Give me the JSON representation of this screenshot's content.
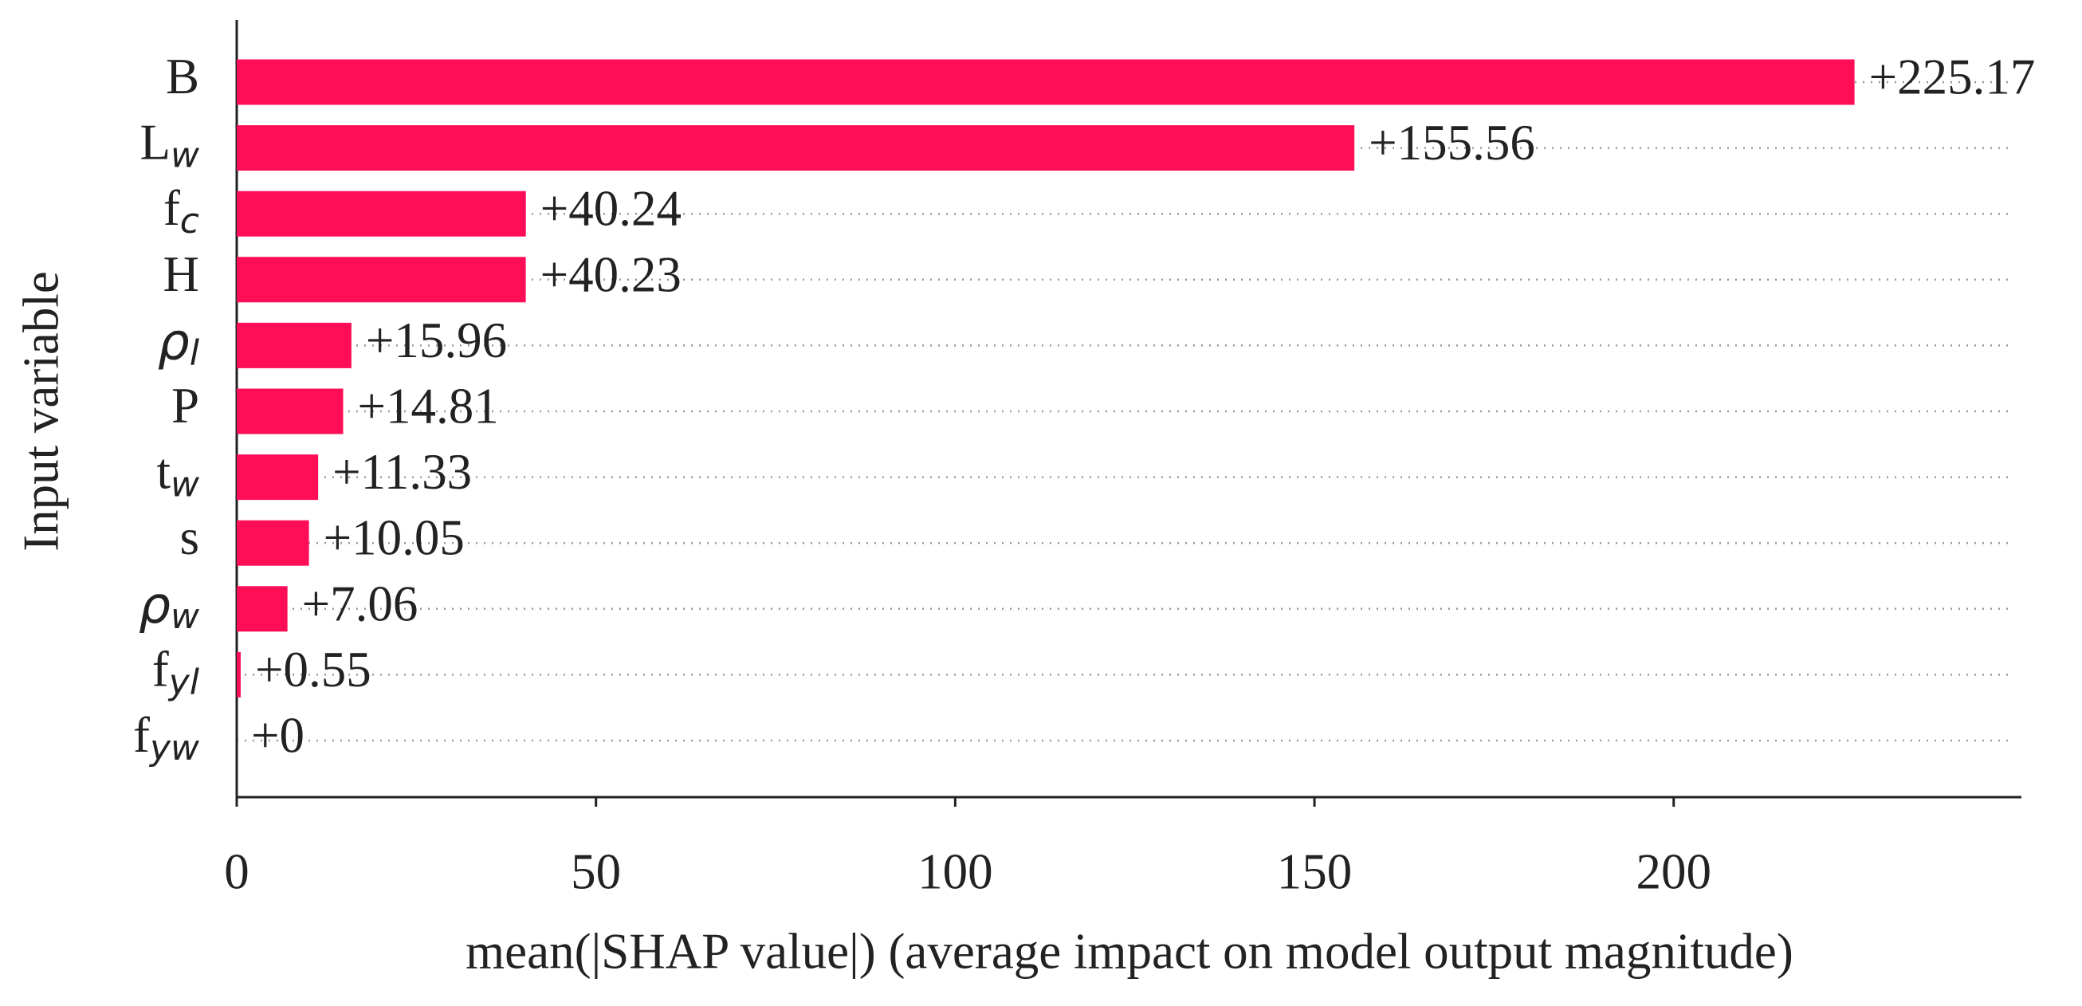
{
  "chart_data": {
    "type": "bar",
    "orientation": "horizontal",
    "ylabel": "Input variable",
    "xlabel": "mean(|SHAP value|) (average impact on model output magnitude)",
    "categories": [
      {
        "text": "B"
      },
      {
        "text": "L",
        "sub": "w"
      },
      {
        "text": "f",
        "sub": "c"
      },
      {
        "text": "H"
      },
      {
        "text": "ρ",
        "sub": "l"
      },
      {
        "text": "P"
      },
      {
        "text": "t",
        "sub": "w"
      },
      {
        "text": "s"
      },
      {
        "text": "ρ",
        "sub": "w"
      },
      {
        "text": "f",
        "sub": "yl"
      },
      {
        "text": "f",
        "sub": "yw"
      }
    ],
    "values": [
      225.17,
      155.56,
      40.24,
      40.23,
      15.96,
      14.81,
      11.33,
      10.05,
      7.06,
      0.55,
      0
    ],
    "value_labels": [
      "+225.17",
      "+155.56",
      "+40.24",
      "+40.23",
      "+15.96",
      "+14.81",
      "+11.33",
      "+10.05",
      "+7.06",
      "+0.55",
      "+0"
    ],
    "color": "#ff0d57",
    "xlim": [
      0,
      248.4
    ],
    "xticks": [
      0,
      50,
      100,
      150,
      200
    ]
  }
}
